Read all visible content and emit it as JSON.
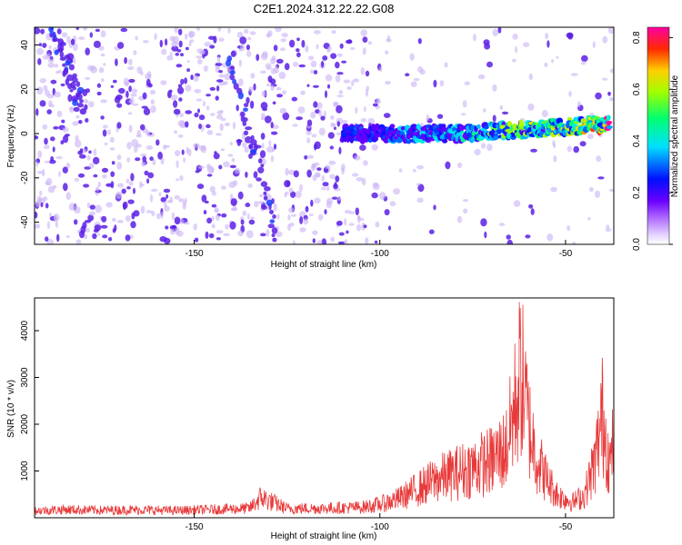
{
  "title": "C2E1.2024.312.22.22.G08",
  "colors": {
    "snr_line": "#e83a3a",
    "speck_dark": "#5a1fe6",
    "speck_light": "#c9b3f5",
    "background": "#ffffff"
  },
  "chart_data": [
    {
      "type": "heatmap",
      "xlabel": "Height of straight line (km)",
      "ylabel": "Frequency (Hz)",
      "xlim": [
        -193,
        -37
      ],
      "ylim": [
        -50,
        48
      ],
      "xticks": [
        -150,
        -100,
        -50
      ],
      "yticks": [
        -40,
        -20,
        0,
        20,
        40
      ],
      "grid": false,
      "colorbar": {
        "label": "Normalized spectral amplitude",
        "range": [
          0.0,
          0.84
        ],
        "ticks": [
          0.0,
          0.2,
          0.4,
          0.6,
          0.8
        ],
        "colormap": "rainbow (white to magenta, purple, blue, cyan, green, yellow, red, pink)"
      },
      "ridge": {
        "description": "Doppler trace of strongest amplitude",
        "x": [
          -110,
          -100,
          -90,
          -80,
          -70,
          -60,
          -50,
          -40,
          -38
        ],
        "y": [
          0,
          0,
          0,
          0,
          1,
          2,
          3,
          4,
          5
        ],
        "peak_amplitude": [
          0.3,
          0.35,
          0.4,
          0.45,
          0.55,
          0.6,
          0.6,
          0.75,
          0.84
        ]
      },
      "streaks": [
        {
          "x": [
            -188,
            -180
          ],
          "y": [
            48,
            10
          ]
        },
        {
          "x": [
            -140,
            -128
          ],
          "y": [
            36,
            -48
          ]
        }
      ]
    },
    {
      "type": "line",
      "xlabel": "Height of straight line (km)",
      "ylabel": "SNR (10 * v/v)",
      "xlim": [
        -193,
        -37
      ],
      "ylim": [
        0,
        4700
      ],
      "xticks": [
        -150,
        -100,
        -50
      ],
      "yticks": [
        1000,
        2000,
        3000,
        4000
      ],
      "grid": false,
      "series": [
        {
          "x": [
            -193,
            -185,
            -175,
            -165,
            -155,
            -145,
            -135,
            -132,
            -125,
            -115,
            -105,
            -100,
            -95,
            -90,
            -85,
            -80,
            -75,
            -70,
            -66,
            -64,
            -62,
            -60,
            -58,
            -55,
            -52,
            -48,
            -45,
            -42,
            -40,
            -38,
            -37
          ],
          "y": [
            220,
            260,
            240,
            250,
            230,
            260,
            300,
            650,
            290,
            300,
            330,
            420,
            600,
            900,
            1200,
            1400,
            1600,
            1800,
            2200,
            3300,
            4650,
            3000,
            2000,
            1200,
            700,
            500,
            700,
            1800,
            3300,
            1600,
            2500
          ]
        }
      ]
    }
  ]
}
